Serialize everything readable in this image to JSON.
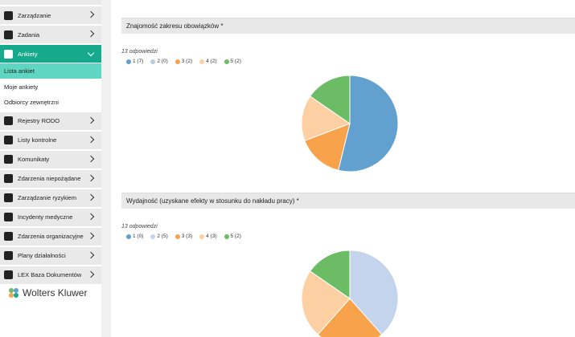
{
  "sidebar": {
    "items": [
      "Zarządzanie",
      "Zadania",
      "Ankiety"
    ],
    "submenu": [
      "Lista ankiet",
      "Moje ankiety",
      "Odbiorcy zewnętrzni"
    ],
    "items_after": [
      "Rejestry RODO",
      "Listy kontrolne",
      "Komunikaty",
      "Zdarzenia niepożądane",
      "Zarządzanie ryzykiem",
      "Incydenty medyczne",
      "Zdarzenia organizacyjne",
      "Plany działalności",
      "LEX Baza Dokumentów"
    ],
    "brand": "Wolters Kluwer"
  },
  "sections": [
    {
      "title": "Znajomość zakresu obowiązków *",
      "responses": "13 odpowiedzi",
      "legend": [
        "1 (7)",
        "2 (0)",
        "3 (2)",
        "4 (2)",
        "5 (2)"
      ],
      "values": [
        7,
        0,
        2,
        2,
        2
      ],
      "colors": [
        "#62a0cf",
        "#b9cde6",
        "#f8a34b",
        "#fdd0a3",
        "#6cbc66"
      ]
    },
    {
      "title": "Wydajność (uzyskane efekty w stosunku do nakładu pracy) *",
      "responses": "13 odpowiedzi",
      "legend": [
        "1 (0)",
        "2 (5)",
        "3 (3)",
        "4 (3)",
        "5 (2)"
      ],
      "values": [
        0,
        5,
        3,
        3,
        2
      ],
      "colors": [
        "#62a0cf",
        "#c3d4ec",
        "#f8a34b",
        "#fdd0a3",
        "#6cbc66"
      ]
    }
  ]
}
